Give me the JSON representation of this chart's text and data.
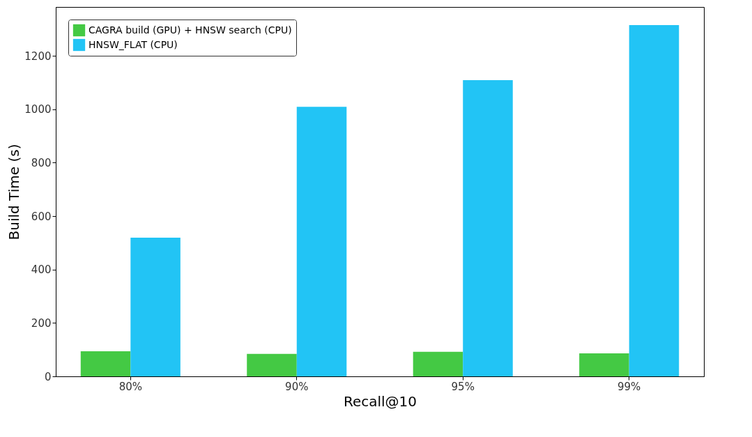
{
  "chart_data": {
    "type": "bar",
    "xlabel": "Recall@10",
    "ylabel": "Build Time (s)",
    "categories": [
      "80%",
      "90%",
      "95%",
      "99%"
    ],
    "series": [
      {
        "name": "CAGRA build (GPU) + HNSW search (CPU)",
        "color": "#44c944",
        "values": [
          94,
          84,
          92,
          86
        ]
      },
      {
        "name": "HNSW_FLAT (CPU)",
        "color": "#22c4f5",
        "values": [
          519,
          1009,
          1109,
          1315
        ]
      }
    ],
    "ylim": [
      0,
      1383
    ],
    "yticks": [
      0,
      200,
      400,
      600,
      800,
      1000,
      1200
    ],
    "grid": false,
    "legend": "top left"
  }
}
